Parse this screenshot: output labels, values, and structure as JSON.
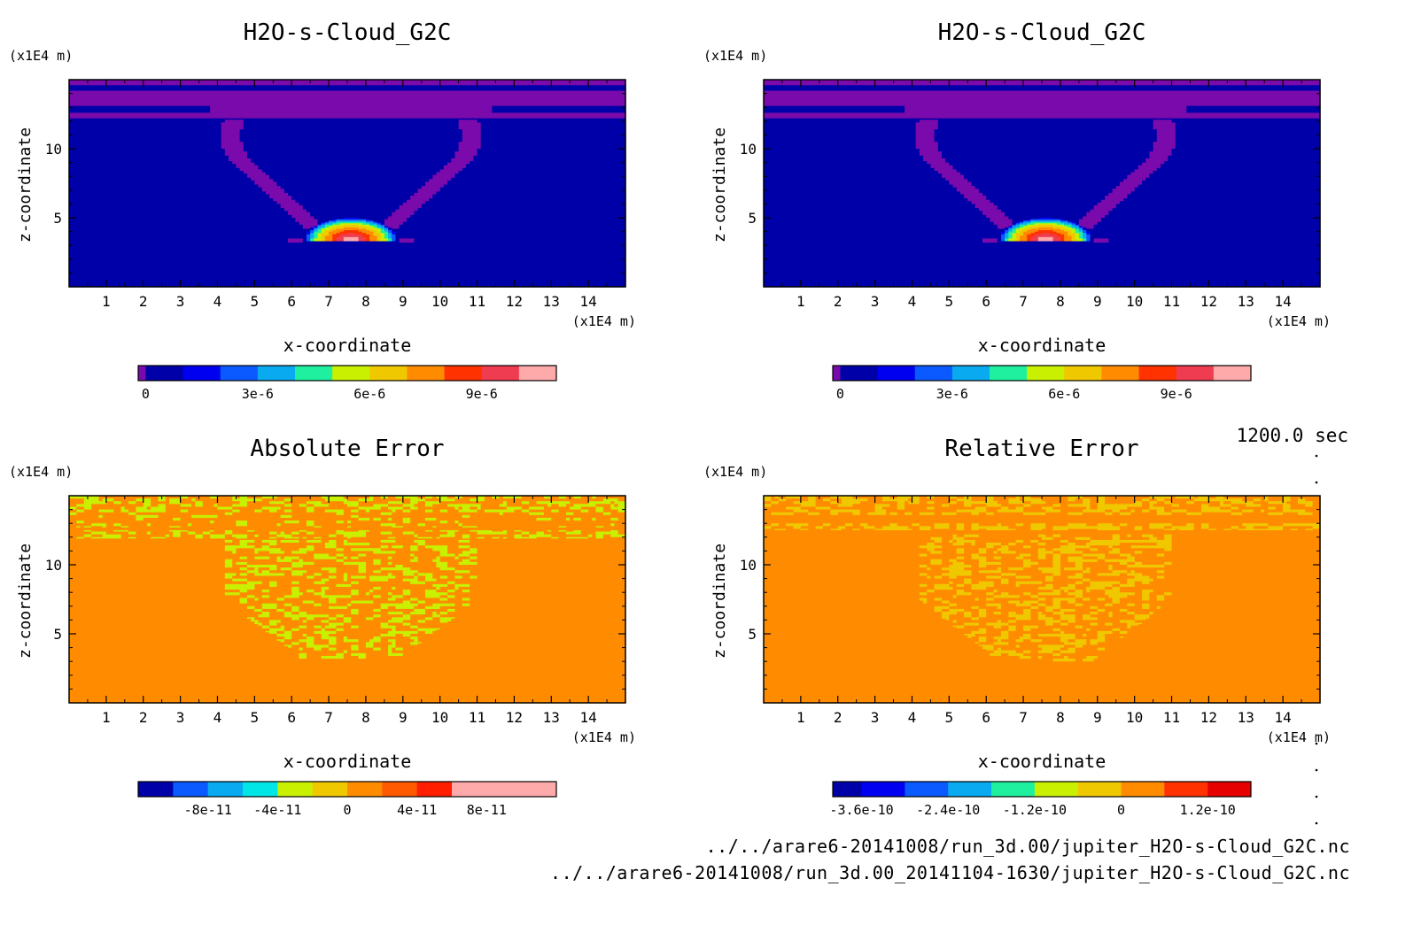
{
  "time_label": "1200.0 sec",
  "footer": {
    "line1": "../../arare6-20141008/run_3d.00/jupiter_H2O-s-Cloud_G2C.nc",
    "line2": "../../arare6-20141008/run_3d.00_20141104-1630/jupiter_H2O-s-Cloud_G2C.nc"
  },
  "colors": {
    "palette": [
      "#7a0aab",
      "#0000a8",
      "#0000f0",
      "#0a5aff",
      "#0aaaf0",
      "#00e6e6",
      "#1ef0a0",
      "#c8f000",
      "#f0c800",
      "#ff8c00",
      "#ff3200",
      "#e60000",
      "#f03c50",
      "#ffaaaa"
    ],
    "background_blue": "#0000a8",
    "band_purple": "#7a0aab",
    "abs_background": "#c8f000",
    "abs_speckle": "#00e6e6",
    "rel_background": "#ff3200",
    "rel_speckle": "#ff8c00"
  },
  "chart_data": [
    {
      "type": "heatmap",
      "title": "H2O-s-Cloud_G2C",
      "xlabel": "x-coordinate",
      "ylabel": "z-coordinate",
      "x_unit": "(x1E4 m)",
      "y_unit": "(x1E4 m)",
      "xlim": [
        0,
        15
      ],
      "ylim": [
        0,
        15
      ],
      "xticks": [
        "1",
        "2",
        "3",
        "4",
        "5",
        "6",
        "7",
        "8",
        "9",
        "10",
        "11",
        "12",
        "13",
        "14"
      ],
      "yticks": [
        "5",
        "10"
      ],
      "colorbar": {
        "levels": [
          0,
          1e-06,
          2e-06,
          3e-06,
          4e-06,
          5e-06,
          6e-06,
          7e-06,
          8e-06,
          9e-06,
          1e-05,
          1.1e-05
        ],
        "min": -2e-07,
        "max": 1.1e-05,
        "colors": [
          "#7a0aab",
          "#0000a8",
          "#0000f0",
          "#0a5aff",
          "#0aaaf0",
          "#1ef0a0",
          "#c8f000",
          "#f0c800",
          "#ff8c00",
          "#ff3200",
          "#f03c50",
          "#ffaaaa"
        ],
        "ticks": [
          0,
          3e-06,
          6e-06,
          9e-06
        ],
        "tick_labels": [
          "0",
          "3e-6",
          "6e-6",
          "9e-6"
        ]
      },
      "features": {
        "cloud_center_x": 7.6,
        "cloud_base_z": 3.3,
        "cloud_peak_z": 5.0,
        "cloud_peak_value": 1.1e-05
      }
    },
    {
      "type": "heatmap",
      "title": "H2O-s-Cloud_G2C",
      "xlabel": "x-coordinate",
      "ylabel": "z-coordinate",
      "x_unit": "(x1E4 m)",
      "y_unit": "(x1E4 m)",
      "xlim": [
        0,
        15
      ],
      "ylim": [
        0,
        15
      ],
      "xticks": [
        "1",
        "2",
        "3",
        "4",
        "5",
        "6",
        "7",
        "8",
        "9",
        "10",
        "11",
        "12",
        "13",
        "14"
      ],
      "yticks": [
        "5",
        "10"
      ],
      "colorbar": {
        "levels": [
          0,
          1e-06,
          2e-06,
          3e-06,
          4e-06,
          5e-06,
          6e-06,
          7e-06,
          8e-06,
          9e-06,
          1e-05,
          1.1e-05
        ],
        "min": -2e-07,
        "max": 1.1e-05,
        "colors": [
          "#7a0aab",
          "#0000a8",
          "#0000f0",
          "#0a5aff",
          "#0aaaf0",
          "#1ef0a0",
          "#c8f000",
          "#f0c800",
          "#ff8c00",
          "#ff3200",
          "#f03c50",
          "#ffaaaa"
        ],
        "ticks": [
          0,
          3e-06,
          6e-06,
          9e-06
        ],
        "tick_labels": [
          "0",
          "3e-6",
          "6e-6",
          "9e-6"
        ]
      },
      "features": {
        "cloud_center_x": 7.6,
        "cloud_base_z": 3.3,
        "cloud_peak_z": 5.0,
        "cloud_peak_value": 1.1e-05
      }
    },
    {
      "type": "heatmap",
      "title": "Absolute Error",
      "xlabel": "x-coordinate",
      "ylabel": "z-coordinate",
      "x_unit": "(x1E4 m)",
      "y_unit": "(x1E4 m)",
      "xlim": [
        0,
        15
      ],
      "ylim": [
        0,
        15
      ],
      "xticks": [
        "1",
        "2",
        "3",
        "4",
        "5",
        "6",
        "7",
        "8",
        "9",
        "10",
        "11",
        "12",
        "13",
        "14"
      ],
      "yticks": [
        "5",
        "10"
      ],
      "colorbar": {
        "levels": [
          -1.2e-10,
          -1e-10,
          -8e-11,
          -6e-11,
          -4e-11,
          -2e-11,
          0,
          2e-11,
          4e-11,
          6e-11,
          8e-11,
          1e-10,
          1.2e-10
        ],
        "min": -1.2e-10,
        "max": 1.2e-10,
        "colors": [
          "#7a0aab",
          "#0000a8",
          "#0a5aff",
          "#0aaaf0",
          "#00e6e6",
          "#c8f000",
          "#f0c800",
          "#ff8c00",
          "#ff5a00",
          "#ff1e00",
          "#ffaaaa"
        ],
        "ticks": [
          -8e-11,
          -4e-11,
          0,
          4e-11,
          8e-11
        ],
        "tick_labels": [
          "-8e-11",
          "-4e-11",
          "0",
          "4e-11",
          "8e-11"
        ]
      }
    },
    {
      "type": "heatmap",
      "title": "Relative Error",
      "xlabel": "x-coordinate",
      "ylabel": "z-coordinate",
      "x_unit": "(x1E4 m)",
      "y_unit": "(x1E4 m)",
      "xlim": [
        0,
        15
      ],
      "ylim": [
        0,
        15
      ],
      "xticks": [
        "1",
        "2",
        "3",
        "4",
        "5",
        "6",
        "7",
        "8",
        "9",
        "10",
        "11",
        "12",
        "13",
        "14"
      ],
      "yticks": [
        "5",
        "10"
      ],
      "colorbar": {
        "levels": [
          -4e-10,
          -3.6e-10,
          -3e-10,
          -2.4e-10,
          -1.8e-10,
          -1.2e-10,
          -6e-11,
          0,
          6e-11,
          1.2e-10,
          1.8e-10
        ],
        "min": -4e-10,
        "max": 1.8e-10,
        "colors": [
          "#7a0aab",
          "#0000a8",
          "#0000f0",
          "#0a5aff",
          "#0aaaf0",
          "#1ef0a0",
          "#c8f000",
          "#f0c800",
          "#ff8c00",
          "#ff3200",
          "#e60000",
          "#f03c50",
          "#ffaaaa"
        ],
        "ticks": [
          -3.6e-10,
          -2.4e-10,
          -1.2e-10,
          0,
          1.2e-10
        ],
        "tick_labels": [
          "-3.6e-10",
          "-2.4e-10",
          "-1.2e-10",
          "0",
          "1.2e-10"
        ]
      }
    }
  ]
}
